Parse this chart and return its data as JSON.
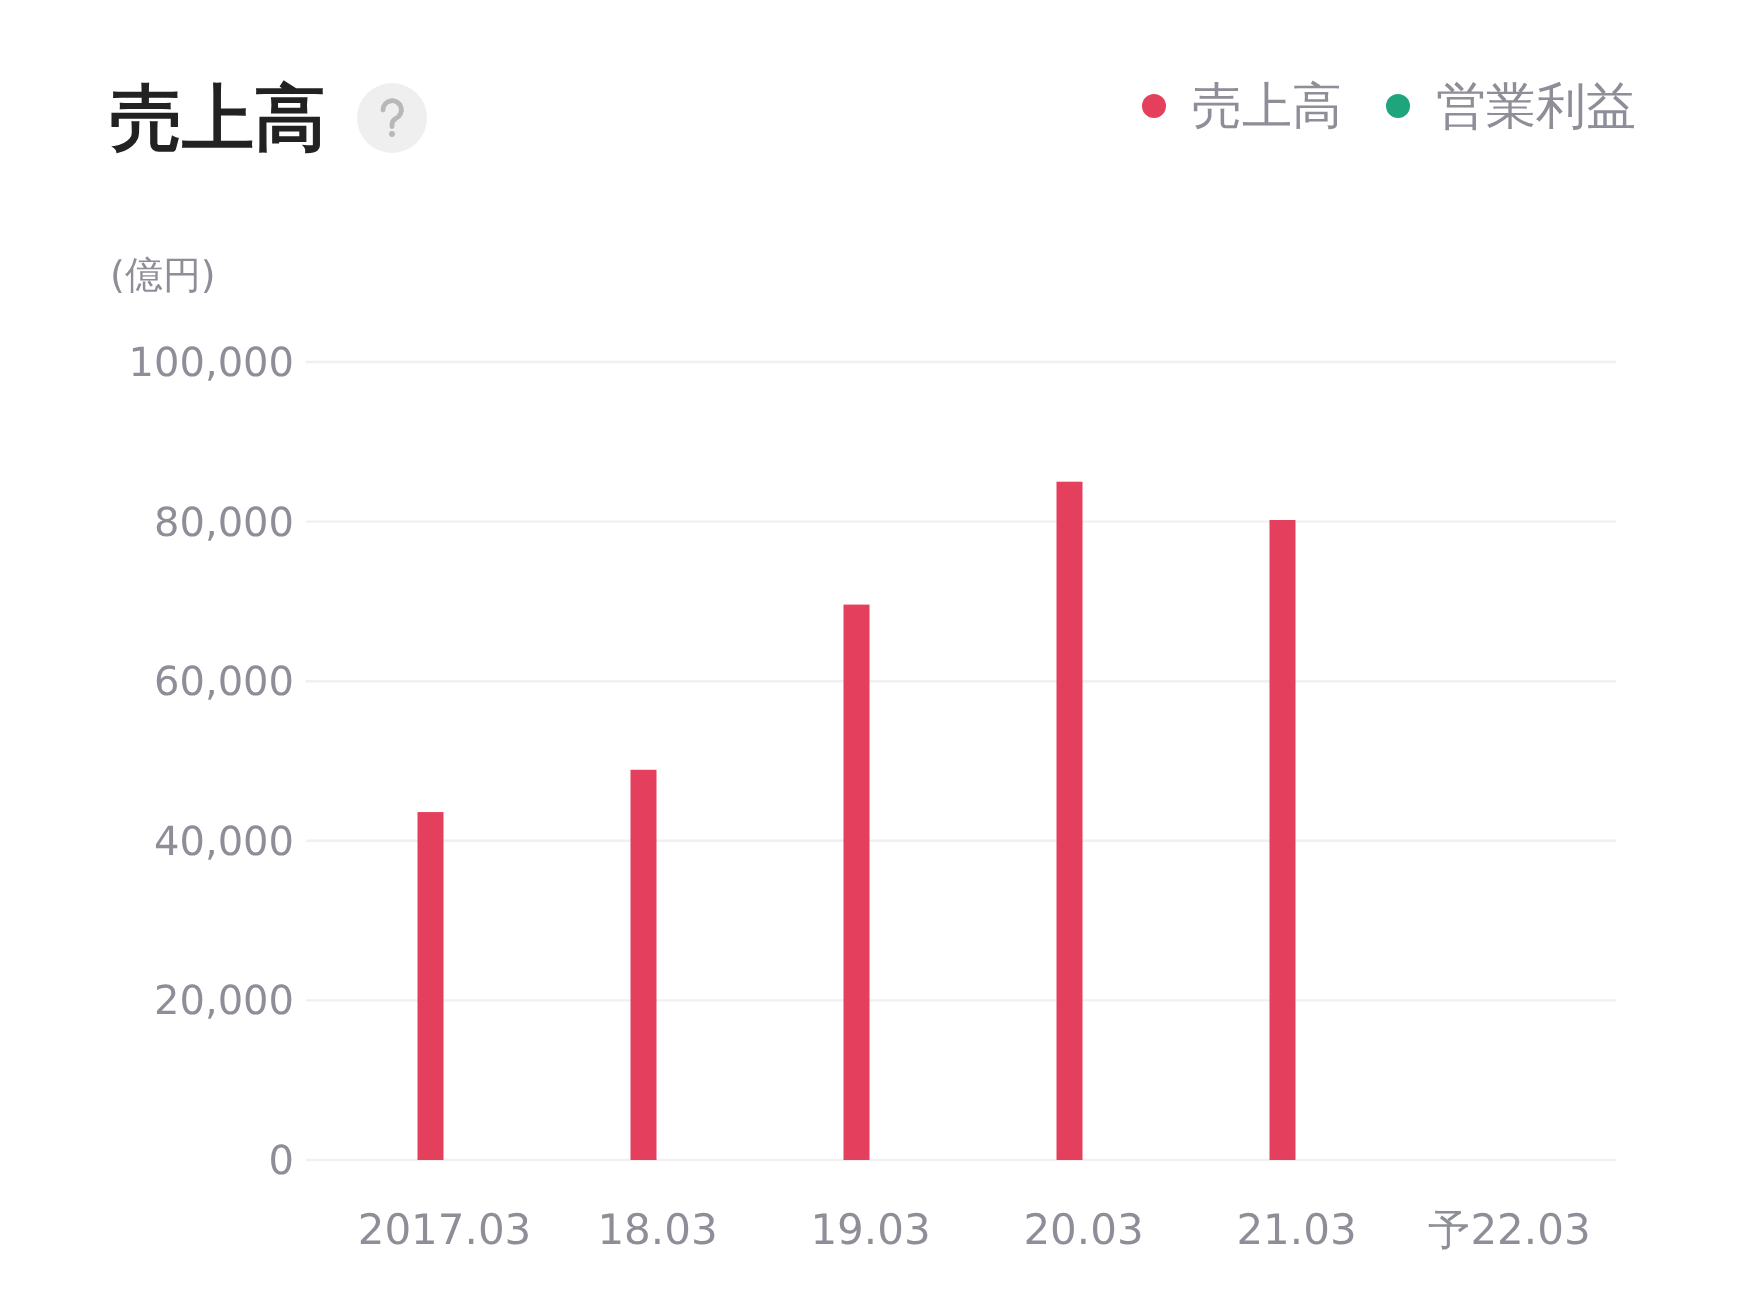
{
  "chart_data": {
    "type": "bar",
    "title": "売上高",
    "ylabel": "(億円)",
    "categories": [
      "2017.03",
      "18.03",
      "19.03",
      "20.03",
      "21.03",
      "予22.03"
    ],
    "series": [
      {
        "name": "売上高",
        "color": "#e4405e",
        "values": [
          43600,
          48900,
          69600,
          85000,
          80200,
          null
        ]
      },
      {
        "name": "営業利益",
        "color": "#1fa57c",
        "values": [
          null,
          null,
          null,
          null,
          null,
          null
        ]
      }
    ],
    "ylim": [
      0,
      100000
    ],
    "yticks": [
      0,
      {
        "value": 20000,
        "label": "20,000"
      },
      {
        "value": 40000,
        "label": "40,000"
      },
      {
        "value": 60000,
        "label": "60,000"
      },
      {
        "value": 80000,
        "label": "80,000"
      },
      {
        "value": 100000,
        "label": "100,000"
      }
    ],
    "grid": "y",
    "legend": "top right"
  }
}
